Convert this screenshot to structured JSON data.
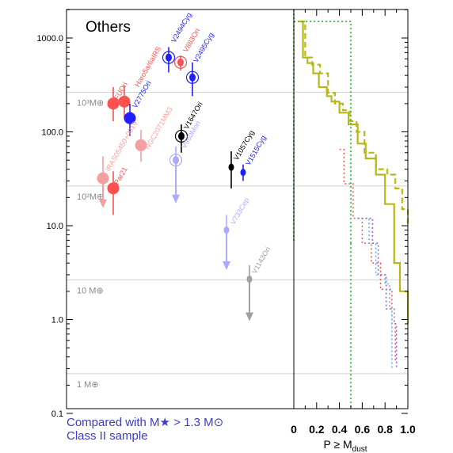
{
  "caption": {
    "line1": "Compared with M★ > 1.3 M⊙",
    "line2": "Class II sample"
  },
  "chart_data": {
    "type": "scatter",
    "title": "Others",
    "yscale": "log",
    "ylim": [
      0.1,
      2000
    ],
    "y_ticks": [
      {
        "value": 0.1,
        "label": "0.1"
      },
      {
        "value": 1,
        "label": "1.0"
      },
      {
        "value": 10,
        "label": "10.0"
      },
      {
        "value": 100,
        "label": "100.0"
      },
      {
        "value": 1000,
        "label": "1000.0"
      }
    ],
    "mass_reference_lines": [
      {
        "value": 265,
        "label": "10³M⊕"
      },
      {
        "value": 26.5,
        "label": "10²M⊕"
      },
      {
        "value": 2.65,
        "label": "10 M⊕"
      },
      {
        "value": 0.265,
        "label": "1 M⊕"
      }
    ],
    "sources": [
      {
        "name": "FU Ori",
        "label": "FUOri",
        "color": "#ff5050",
        "y": 200,
        "err": [
          130,
          300
        ],
        "marker": "filled-circle-large"
      },
      {
        "name": "Haro 5a/6a IRS",
        "label": "Haro5a/6aIRS",
        "color": "#ff5050",
        "y": 210,
        "err": [
          140,
          310
        ],
        "marker": "filled-circle-large"
      },
      {
        "name": "Parsamian 21",
        "label": "Par21",
        "color": "#ff5050",
        "y": 25,
        "err": [
          13,
          38
        ],
        "marker": "filled-circle-large"
      },
      {
        "name": "V883 Ori",
        "label": "V883Ori",
        "color": "#ff5050",
        "y": 550,
        "err": [
          450,
          650
        ],
        "marker": "circled-dot"
      },
      {
        "name": "V2775 Ori",
        "label": "V2775Ori",
        "color": "#1e1eff",
        "y": 140,
        "err": [
          90,
          200
        ],
        "marker": "filled-circle-large"
      },
      {
        "name": "V2494 Cyg",
        "label": "V2494Cyg",
        "color": "#1e1eff",
        "y": 620,
        "err": [
          430,
          800
        ],
        "marker": "circled-dot"
      },
      {
        "name": "V2495 Cyg",
        "label": "V2495Cyg",
        "color": "#1e1eff",
        "y": 380,
        "err": [
          240,
          550
        ],
        "marker": "circled-dot"
      },
      {
        "name": "V1515 Cyg",
        "label": "V1515Cyg",
        "color": "#1e1eff",
        "y": 37,
        "err": [
          30,
          45
        ],
        "marker": "filled-circle-small"
      },
      {
        "name": "V1647 Ori",
        "label": "V1647Ori",
        "color": "#000000",
        "y": 90,
        "err": [
          60,
          120
        ],
        "marker": "circled-dot"
      },
      {
        "name": "V1057 Cyg",
        "label": "V1057Cyg",
        "color": "#000000",
        "y": 42,
        "err": [
          25,
          62
        ],
        "marker": "filled-circle-small"
      },
      {
        "name": "IRAS 05450+0019",
        "label": "IRAS05450+0019",
        "color": "#f5a0a0",
        "y": 32,
        "upper_limit": true,
        "err": [
          16,
          55
        ],
        "marker": "filled-circle-large"
      },
      {
        "name": "NGC 2071 MM3",
        "label": "NGC2071MM3",
        "color": "#f5a0a0",
        "y": 72,
        "err": [
          48,
          105
        ],
        "marker": "filled-circle-large"
      },
      {
        "name": "V960 Mon",
        "label": "V960Mon",
        "color": "#aaaaff",
        "y": 50,
        "upper_limit": true,
        "err": [
          18,
          70
        ],
        "marker": "circled-dot"
      },
      {
        "name": "V733 Cep",
        "label": "V733Cep",
        "color": "#aaaaff",
        "y": 9,
        "upper_limit": true,
        "err": [
          3.5,
          13
        ],
        "marker": "filled-circle-small"
      },
      {
        "name": "V1143 Ori",
        "label": "V1143Ori",
        "color": "#a0a0a0",
        "y": 2.7,
        "upper_limit": true,
        "err": [
          1.0,
          3.8
        ],
        "marker": "filled-circle-small"
      }
    ],
    "panel2": {
      "type": "step",
      "xlabel": "P ≥ M",
      "xlabel_sub": "dust",
      "xlim": [
        0,
        1.0
      ],
      "x_ticks": [
        0,
        0.2,
        0.4,
        0.6,
        0.8,
        1.0
      ],
      "x_tick_labels": [
        "0",
        "0.2",
        "0.4",
        "0.6",
        "0.8",
        "1.0"
      ],
      "series": [
        {
          "color": "#b8b814",
          "dash": "solid",
          "width": 2.2,
          "x": [
            0.05,
            0.08,
            0.12,
            0.17,
            0.22,
            0.29,
            0.33,
            0.4,
            0.48,
            0.56,
            0.63,
            0.72,
            0.8,
            0.88,
            0.93,
            1.0
          ],
          "y": [
            1500,
            620,
            540,
            420,
            300,
            240,
            210,
            160,
            120,
            75,
            52,
            35,
            17,
            4,
            2,
            0.9
          ]
        },
        {
          "color": "#b8b814",
          "dash": "dashed",
          "width": 2.2,
          "x": [
            0.05,
            0.1,
            0.16,
            0.23,
            0.3,
            0.36,
            0.43,
            0.49,
            0.55,
            0.62,
            0.72,
            0.82,
            0.89,
            0.95,
            1.0
          ],
          "y": [
            1500,
            620,
            520,
            420,
            260,
            200,
            170,
            130,
            100,
            60,
            40,
            35,
            25,
            15,
            10
          ]
        },
        {
          "color": "#ff5050",
          "dash": "dotted",
          "width": 1.5,
          "x": [
            0.4,
            0.44,
            0.52,
            0.6,
            0.68,
            0.76,
            0.86,
            0.89
          ],
          "y": [
            65,
            28,
            12,
            6.5,
            4,
            2.1,
            0.9,
            0.35
          ]
        },
        {
          "color": "#5aaaff",
          "dash": "dotted",
          "width": 1.5,
          "x": [
            0.56,
            0.66,
            0.72,
            0.8,
            0.84,
            0.86
          ],
          "y": [
            12,
            6.5,
            3,
            2.4,
            1.3,
            0.3
          ]
        },
        {
          "color": "#aa55dd",
          "dash": "dotted",
          "width": 1.5,
          "x": [
            0.56,
            0.69,
            0.74,
            0.81,
            0.88,
            0.9
          ],
          "y": [
            12,
            6.5,
            3,
            1.3,
            0.9,
            0.3
          ]
        },
        {
          "color": "#28c828",
          "dash": "dotted",
          "width": 1.8,
          "x": [
            0.0,
            0.5
          ],
          "y": [
            1500,
            6.5
          ]
        }
      ]
    }
  }
}
